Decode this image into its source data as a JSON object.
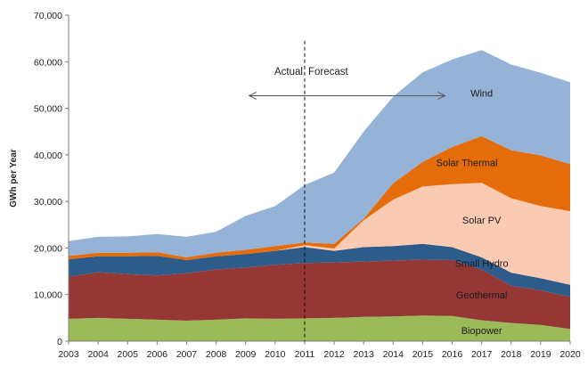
{
  "chart_data": {
    "type": "area",
    "stacked": true,
    "title": "",
    "xlabel": "",
    "ylabel": "GWh per Year",
    "ylim": [
      0,
      70000
    ],
    "yticks": [
      0,
      10000,
      20000,
      30000,
      40000,
      50000,
      60000,
      70000
    ],
    "ytick_labels": [
      "0",
      "10,000",
      "20,000",
      "30,000",
      "40,000",
      "50,000",
      "60,000",
      "70,000"
    ],
    "x": [
      "2003",
      "2004",
      "2005",
      "2006",
      "2007",
      "2008",
      "2009",
      "2010",
      "2011",
      "2012",
      "2013",
      "2014",
      "2015",
      "2016",
      "2017",
      "2018",
      "2019",
      "2020"
    ],
    "grid": false,
    "legend": "none",
    "series": [
      {
        "name": "Biopower",
        "color": "#9bbb59",
        "values": [
          4800,
          5000,
          4800,
          4600,
          4400,
          4600,
          4900,
          4800,
          4900,
          5000,
          5200,
          5300,
          5500,
          5400,
          4500,
          3900,
          3500,
          2600
        ]
      },
      {
        "name": "Geothermal",
        "color": "#953735",
        "values": [
          9000,
          9800,
          9600,
          9500,
          10200,
          10800,
          10900,
          11600,
          11900,
          11900,
          11900,
          12000,
          12000,
          12000,
          10900,
          8000,
          7400,
          6900
        ]
      },
      {
        "name": "Small Hydro",
        "color": "#2e5c8a",
        "values": [
          3800,
          3400,
          3800,
          4200,
          2800,
          2800,
          2900,
          3000,
          3400,
          2500,
          3100,
          3100,
          3400,
          2800,
          2600,
          2800,
          2600,
          2600
        ]
      },
      {
        "name": "Solar PV",
        "color": "#fbcab2",
        "values": [
          0,
          0,
          0,
          0,
          0,
          0,
          0,
          0,
          400,
          500,
          5800,
          10000,
          12300,
          13500,
          16000,
          16000,
          15500,
          15800
        ]
      },
      {
        "name": "Solar Thermal",
        "color": "#e46c0a",
        "values": [
          700,
          800,
          800,
          800,
          600,
          800,
          900,
          1000,
          600,
          1000,
          300,
          3500,
          5300,
          8000,
          10000,
          10300,
          10900,
          10100
        ]
      },
      {
        "name": "Wind",
        "color": "#95b3d7",
        "values": [
          3200,
          3400,
          3500,
          3900,
          4400,
          4500,
          7300,
          8600,
          12300,
          15300,
          18700,
          18600,
          19200,
          18800,
          18500,
          18400,
          17700,
          17600
        ]
      }
    ],
    "annotations": {
      "divider_year": "2011",
      "actual_label": "Actual",
      "forecast_label": "Forecast"
    }
  }
}
